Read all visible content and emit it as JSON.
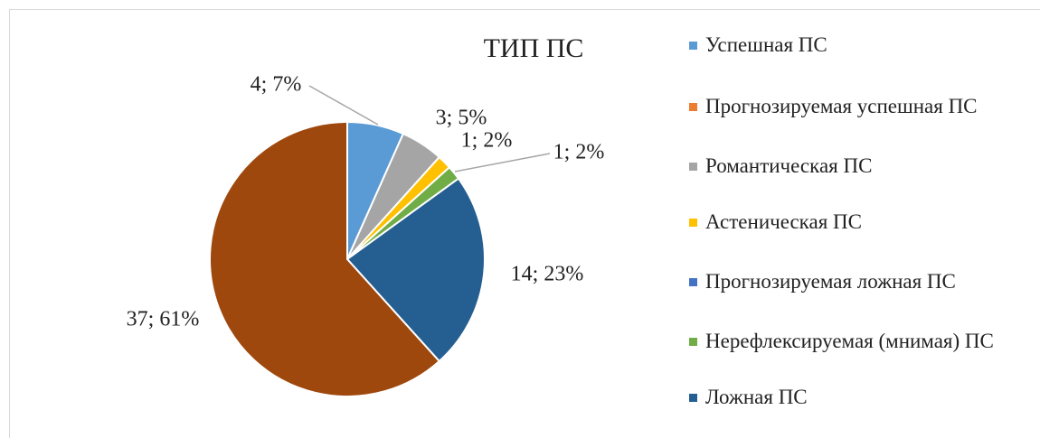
{
  "chart_data": {
    "type": "pie",
    "title": "ТИП ПС",
    "categories": [
      "Успешная ПС",
      "Прогнозируемая успешная ПС",
      "Романтическая ПС",
      "Астеническая ПС",
      "Прогнозируемая ложная ПС",
      "Нерефлексируемая (мнимая) ПС",
      "Ложная ПС",
      null
    ],
    "values": [
      4,
      0,
      3,
      1,
      0,
      1,
      14,
      37
    ],
    "value_labels": [
      "4; 7%",
      null,
      "3; 5%",
      "1; 2%",
      null,
      "1; 2%",
      "14; 23%",
      "37; 61%"
    ],
    "colors": [
      "#5b9bd5",
      "#ed7d31",
      "#a5a5a5",
      "#ffc000",
      "#4472c4",
      "#70ad47",
      "#255e91",
      "#9e480e"
    ],
    "legend": "right"
  }
}
